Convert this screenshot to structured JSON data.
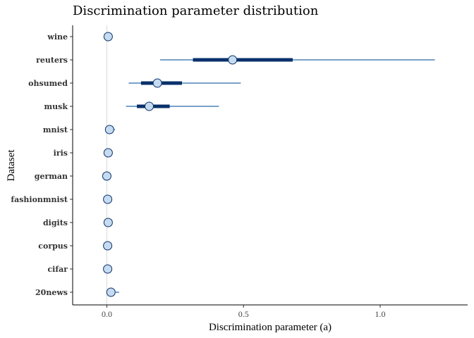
{
  "chart_data": {
    "type": "interval",
    "title": "Discrimination parameter distribution",
    "xlabel": "Discrimination parameter (a)",
    "ylabel": "Dataset",
    "xlim": [
      -0.125,
      1.32
    ],
    "xticks": [
      0.0,
      0.5,
      1.0
    ],
    "xtick_labels": [
      "0.0",
      "0.5",
      "1.0"
    ],
    "reference_line_x": 0,
    "grid": false,
    "colors": {
      "inner_interval": "#08306b",
      "outer_interval": "#2b6aa6",
      "point_fill": "#c6dbef",
      "point_stroke": "#08306b",
      "reference_line": "#d9d9d9"
    },
    "datasets": [
      {
        "name": "wine",
        "median": 0.005,
        "inner": [
          0.0,
          0.01
        ],
        "outer": [
          -0.005,
          0.015
        ]
      },
      {
        "name": "reuters",
        "median": 0.46,
        "inner": [
          0.315,
          0.68
        ],
        "outer": [
          0.195,
          1.2
        ]
      },
      {
        "name": "ohsumed",
        "median": 0.185,
        "inner": [
          0.125,
          0.275
        ],
        "outer": [
          0.08,
          0.49
        ]
      },
      {
        "name": "musk",
        "median": 0.155,
        "inner": [
          0.11,
          0.23
        ],
        "outer": [
          0.07,
          0.41
        ]
      },
      {
        "name": "mnist",
        "median": 0.01,
        "inner": [
          0.005,
          0.02
        ],
        "outer": [
          0.0,
          0.03
        ]
      },
      {
        "name": "iris",
        "median": 0.005,
        "inner": [
          0.0,
          0.01
        ],
        "outer": [
          -0.005,
          0.015
        ]
      },
      {
        "name": "german",
        "median": 0.0,
        "inner": [
          -0.003,
          0.005
        ],
        "outer": [
          -0.008,
          0.01
        ]
      },
      {
        "name": "fashionmnist",
        "median": 0.003,
        "inner": [
          0.0,
          0.008
        ],
        "outer": [
          -0.005,
          0.012
        ]
      },
      {
        "name": "digits",
        "median": 0.005,
        "inner": [
          0.0,
          0.01
        ],
        "outer": [
          -0.005,
          0.015
        ]
      },
      {
        "name": "corpus",
        "median": 0.003,
        "inner": [
          0.0,
          0.008
        ],
        "outer": [
          -0.005,
          0.012
        ]
      },
      {
        "name": "cifar",
        "median": 0.003,
        "inner": [
          0.0,
          0.008
        ],
        "outer": [
          -0.005,
          0.012
        ]
      },
      {
        "name": "20news",
        "median": 0.015,
        "inner": [
          0.005,
          0.03
        ],
        "outer": [
          0.0,
          0.045
        ]
      }
    ]
  }
}
